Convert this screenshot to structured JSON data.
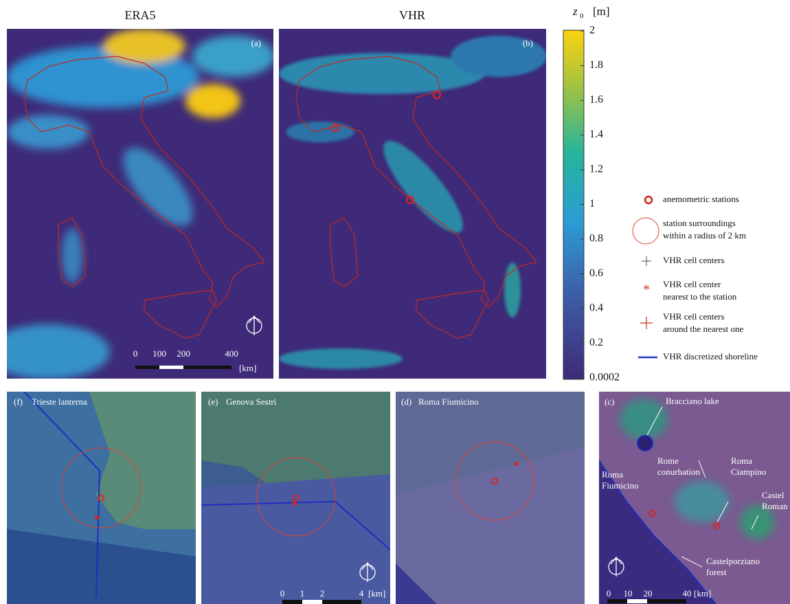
{
  "titles": [
    "ERA5",
    "VHR"
  ],
  "top_panels": [
    {
      "label": "(a)"
    },
    {
      "label": "(b)"
    }
  ],
  "scale_top": {
    "ticks": [
      "0",
      "100",
      "200",
      "400"
    ],
    "unit": "[km]"
  },
  "colorbar": {
    "symbol": "z",
    "subscript": "0",
    "unit": "[m]",
    "ticks": [
      "2",
      "1.8",
      "1.6",
      "1.4",
      "1.2",
      "1",
      "0.8",
      "0.6",
      "0.4",
      "0.2",
      "0.0002"
    ]
  },
  "legend": [
    {
      "lines": [
        "anemometric stations"
      ]
    },
    {
      "lines": [
        "station surroundings",
        "within a radius of 2 km"
      ]
    },
    {
      "lines": [
        "VHR cell centers"
      ]
    },
    {
      "lines": [
        "VHR cell center",
        "nearest to the station"
      ]
    },
    {
      "lines": [
        "VHR cell centers",
        "around the nearest one"
      ]
    },
    {
      "lines": [
        "VHR discretized shoreline"
      ]
    }
  ],
  "bottom_panels": [
    {
      "label": "(f)",
      "name": "Trieste lanterna"
    },
    {
      "label": "(e)",
      "name": "Genova Sestri"
    },
    {
      "label": "(d)",
      "name": "Roma Fiumicino"
    },
    {
      "label": "(c)"
    }
  ],
  "scale_e": {
    "ticks": [
      "0",
      "1",
      "2",
      "4"
    ],
    "unit": "[km]"
  },
  "scale_c": {
    "ticks": [
      "0",
      "10",
      "20",
      "40"
    ],
    "unit": "[km]"
  },
  "annotations_c": [
    {
      "lines": [
        "Bracciano lake"
      ]
    },
    {
      "lines": [
        "Rome",
        "conurbation"
      ]
    },
    {
      "lines": [
        "Roma",
        "Ciampino"
      ]
    },
    {
      "lines": [
        "Roma",
        "Fiumicino"
      ]
    },
    {
      "lines": [
        "Castel",
        "Roman"
      ]
    },
    {
      "lines": [
        "Castelporziano",
        "forest"
      ]
    }
  ]
}
